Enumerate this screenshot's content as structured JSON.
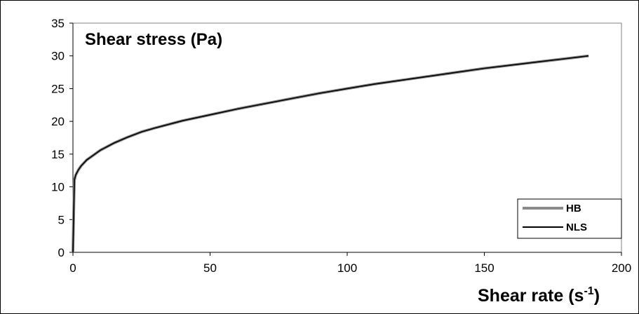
{
  "chart_data": {
    "type": "line",
    "ylabel": "Shear stress (Pa)",
    "xlabel": "Shear rate (s-1)",
    "xlabel_main": "Shear rate (s",
    "xlabel_sup": "-1",
    "xlabel_close": ")",
    "xlim": [
      0,
      200
    ],
    "ylim": [
      0,
      35
    ],
    "xticks": [
      0,
      50,
      100,
      150,
      200
    ],
    "yticks": [
      0,
      5,
      10,
      15,
      20,
      25,
      30,
      35
    ],
    "grid": false,
    "legend_position": "bottom-right",
    "series": [
      {
        "name": "HB",
        "color": "#8a8a8a",
        "x": [
          0,
          0.5,
          1,
          2,
          3,
          5,
          8,
          10,
          15,
          20,
          25,
          30,
          40,
          50,
          60,
          70,
          80,
          90,
          100,
          110,
          120,
          130,
          140,
          150,
          160,
          170,
          180,
          188
        ],
        "y": [
          0,
          11.0,
          11.8,
          12.6,
          13.2,
          14.1,
          15.0,
          15.6,
          16.7,
          17.6,
          18.4,
          19.0,
          20.1,
          21.0,
          21.9,
          22.7,
          23.5,
          24.3,
          25.0,
          25.7,
          26.3,
          26.9,
          27.5,
          28.1,
          28.6,
          29.1,
          29.6,
          30.0
        ]
      },
      {
        "name": "NLS",
        "color": "#000000",
        "x": [
          0,
          0.5,
          1,
          2,
          3,
          5,
          8,
          10,
          15,
          20,
          25,
          30,
          40,
          50,
          60,
          70,
          80,
          90,
          100,
          110,
          120,
          130,
          140,
          150,
          160,
          170,
          180,
          188
        ],
        "y": [
          0,
          11.0,
          11.8,
          12.6,
          13.2,
          14.1,
          15.0,
          15.6,
          16.7,
          17.6,
          18.4,
          19.0,
          20.1,
          21.0,
          21.9,
          22.7,
          23.5,
          24.3,
          25.0,
          25.7,
          26.3,
          26.9,
          27.5,
          28.1,
          28.6,
          29.1,
          29.6,
          30.0
        ]
      }
    ]
  }
}
